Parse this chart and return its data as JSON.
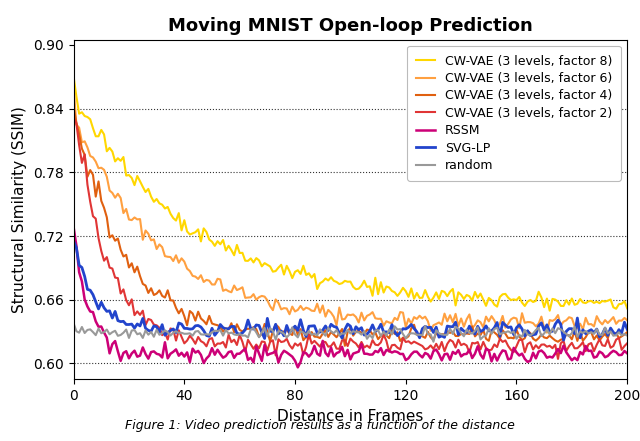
{
  "title": "Moving MNIST Open-loop Prediction",
  "xlabel": "Distance in Frames",
  "ylabel": "Structural Similarity (SSIM)",
  "xlim": [
    0,
    200
  ],
  "ylim": [
    0.585,
    0.905
  ],
  "yticks": [
    0.6,
    0.66,
    0.72,
    0.78,
    0.84,
    0.9
  ],
  "xticks": [
    0,
    40,
    80,
    120,
    160,
    200
  ],
  "series": [
    {
      "label": "CW-VAE (3 levels, factor 8)",
      "color": "#FFD700",
      "lw": 1.5
    },
    {
      "label": "CW-VAE (3 levels, factor 6)",
      "color": "#FFA040",
      "lw": 1.5
    },
    {
      "label": "CW-VAE (3 levels, factor 4)",
      "color": "#E06010",
      "lw": 1.5
    },
    {
      "label": "CW-VAE (3 levels, factor 2)",
      "color": "#E03535",
      "lw": 1.5
    },
    {
      "label": "RSSM",
      "color": "#CC0077",
      "lw": 1.8
    },
    {
      "label": "SVG-LP",
      "color": "#2244CC",
      "lw": 2.0
    },
    {
      "label": "random",
      "color": "#999999",
      "lw": 1.5
    }
  ],
  "legend_fontsize": 9.0,
  "title_fontsize": 13,
  "label_fontsize": 11,
  "tick_fontsize": 10,
  "caption": "Figure 1: Video prediction results as a function of the distance",
  "caption_fontsize": 9
}
